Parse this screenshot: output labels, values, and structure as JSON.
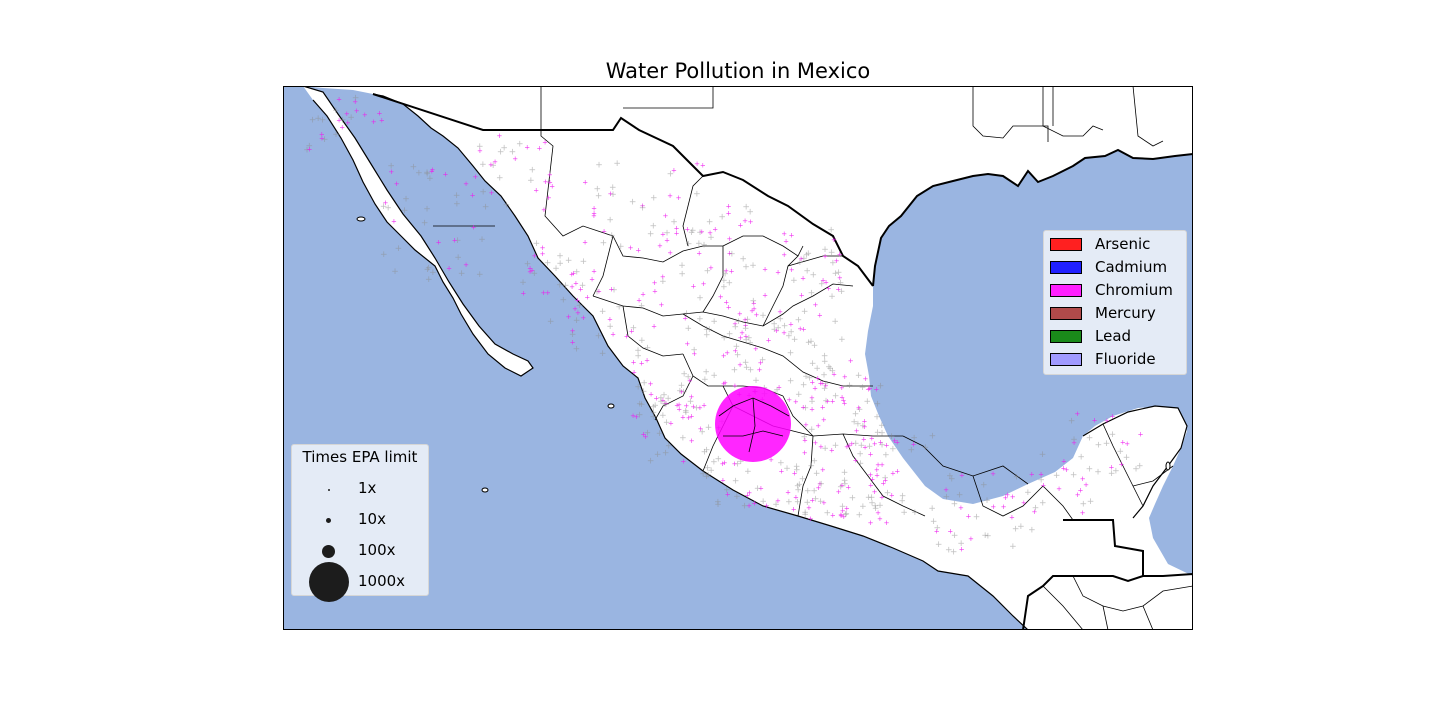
{
  "title": "Water Pollution in Mexico",
  "colors": {
    "ocean": "#9ab5e1",
    "land": "#ffffff",
    "country_border": "#000000",
    "state_border": "#000000",
    "unknown_marker": "#8c8c8c",
    "chromium_marker": "#ee1aee"
  },
  "legend_pollutants": {
    "items": [
      {
        "label": "Arsenic",
        "color": "#ff2020"
      },
      {
        "label": "Cadmium",
        "color": "#2020ff"
      },
      {
        "label": "Chromium",
        "color": "#ff20ff"
      },
      {
        "label": "Mercury",
        "color": "#b04a4a"
      },
      {
        "label": "Lead",
        "color": "#1a8a1a"
      },
      {
        "label": "Fluoride",
        "color": "#a09aff"
      }
    ]
  },
  "legend_sizes": {
    "title": "Times EPA limit",
    "items": [
      {
        "label": "1x",
        "value": 1
      },
      {
        "label": "10x",
        "value": 10
      },
      {
        "label": "100x",
        "value": 100
      },
      {
        "label": "1000x",
        "value": 1000
      }
    ]
  },
  "chart_data": {
    "type": "scatter",
    "title": "Water Pollution in Mexico",
    "series": [
      {
        "name": "Chromium",
        "color": "#ee1aee"
      }
    ],
    "size_legend": [
      "1x",
      "10x",
      "100x",
      "1000x"
    ],
    "legend_placement": [
      "right",
      "lower-left"
    ]
  }
}
